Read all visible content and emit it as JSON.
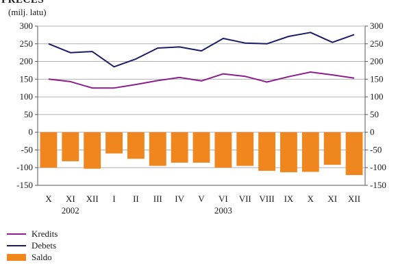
{
  "header": {
    "title": "PRECES",
    "unit": "(milj. latu)"
  },
  "colors": {
    "kredits": "#8b1e8b",
    "debets": "#1c1c66",
    "saldo": "#f0871e",
    "grid": "#b0b0b0",
    "axis": "#555555"
  },
  "chart_data": {
    "type": "bar",
    "categories": [
      "X",
      "XI",
      "XII",
      "I",
      "II",
      "III",
      "IV",
      "V",
      "VI",
      "VII",
      "VIII",
      "IX",
      "X",
      "XI",
      "XII"
    ],
    "year_labels": [
      {
        "label": "2002",
        "category_index": 1
      },
      {
        "label": "2003",
        "category_index": 8
      }
    ],
    "yticks": [
      300,
      250,
      200,
      150,
      100,
      50,
      0,
      -50,
      -100,
      -150
    ],
    "ylim": [
      -150,
      300
    ],
    "grid": true,
    "legend_position": "bottom-left",
    "series": [
      {
        "name": "Kredits",
        "type": "line",
        "values": [
          150,
          143,
          125,
          125,
          135,
          146,
          155,
          145,
          165,
          158,
          142,
          157,
          170,
          162,
          153
        ]
      },
      {
        "name": "Debets",
        "type": "line",
        "values": [
          250,
          225,
          228,
          185,
          207,
          238,
          241,
          230,
          265,
          252,
          250,
          271,
          282,
          254,
          276
        ]
      },
      {
        "name": "Saldo",
        "type": "bar",
        "values": [
          -100,
          -82,
          -103,
          -60,
          -75,
          -95,
          -86,
          -86,
          -100,
          -95,
          -109,
          -113,
          -112,
          -92,
          -121
        ]
      }
    ]
  }
}
